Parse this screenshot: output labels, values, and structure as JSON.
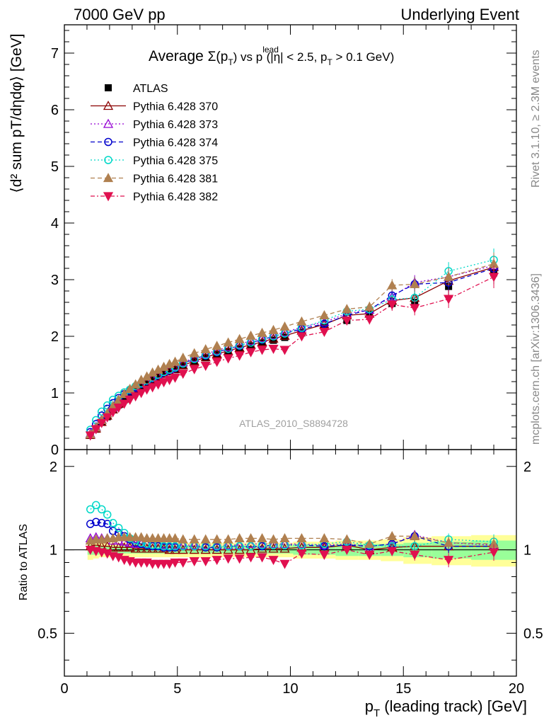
{
  "header": {
    "left": "7000 GeV pp",
    "right": "Underlying Event"
  },
  "side_labels": {
    "rivet": "Rivet 3.1.10, ≥ 2.3M events",
    "mcplots": "mcplots.cern.ch [arXiv:1306.3436]"
  },
  "colors": {
    "ATLAS": "#000000",
    "370": "#8b0000",
    "373": "#9400d3",
    "374": "#0000cc",
    "375": "#00d8c8",
    "381": "#b08050",
    "382": "#e0104f",
    "band_inner": "#99ff99",
    "band_outer": "#ffff99"
  },
  "chart_data": [
    {
      "type": "scatter",
      "title": "Average Σ(pT) vs pT lead (|η| < 2.5, pT > 0.1 GeV)",
      "title_parts": {
        "pre": "Average ",
        "sigma": "Σ(p",
        "sub_T": "T",
        "close": ") vs p",
        "sup_lead": "lead",
        "rest1": " (|η| < 2.5, p",
        "rest2": " > 0.1 GeV)"
      },
      "ylabel": "⟨d² sum pT/dηdφ⟩ [GeV]",
      "watermark": "ATLAS_2010_S8894728",
      "xlim": [
        0,
        20
      ],
      "ylim": [
        0,
        7.5
      ],
      "y_ticks": [
        "0",
        "1",
        "2",
        "3",
        "4",
        "5",
        "6",
        "7"
      ],
      "legend_position": "top-left",
      "series": [
        {
          "name": "ATLAS",
          "marker": "square",
          "x": [
            1.15,
            1.4,
            1.65,
            1.9,
            2.15,
            2.4,
            2.65,
            2.9,
            3.15,
            3.4,
            3.65,
            3.9,
            4.15,
            4.4,
            4.65,
            4.9,
            5.25,
            5.75,
            6.25,
            6.75,
            7.25,
            7.75,
            8.25,
            8.75,
            9.25,
            9.75,
            10.5,
            11.5,
            12.5,
            13.5,
            14.5,
            15.5,
            17.0,
            19.0
          ],
          "y": [
            0.25,
            0.36,
            0.48,
            0.58,
            0.7,
            0.79,
            0.88,
            0.96,
            1.04,
            1.11,
            1.17,
            1.23,
            1.28,
            1.33,
            1.37,
            1.41,
            1.48,
            1.56,
            1.62,
            1.68,
            1.73,
            1.78,
            1.83,
            1.88,
            1.93,
            1.98,
            2.06,
            2.16,
            2.28,
            2.4,
            2.58,
            2.6,
            2.88,
            3.12
          ]
        },
        {
          "name": "Pythia 6.428 370",
          "marker": "triangle-open",
          "dash": "",
          "x": [
            1.15,
            1.4,
            1.65,
            1.9,
            2.15,
            2.4,
            2.65,
            2.9,
            3.15,
            3.4,
            3.65,
            3.9,
            4.15,
            4.4,
            4.65,
            4.9,
            5.25,
            5.75,
            6.25,
            6.75,
            7.25,
            7.75,
            8.25,
            8.75,
            9.25,
            9.75,
            10.5,
            11.5,
            12.5,
            13.5,
            14.5,
            15.5,
            17.0,
            19.0
          ],
          "y": [
            0.26,
            0.37,
            0.49,
            0.6,
            0.71,
            0.81,
            0.9,
            0.98,
            1.05,
            1.12,
            1.18,
            1.24,
            1.29,
            1.34,
            1.38,
            1.42,
            1.49,
            1.56,
            1.63,
            1.69,
            1.74,
            1.8,
            1.85,
            1.9,
            1.96,
            2.01,
            2.1,
            2.21,
            2.37,
            2.4,
            2.63,
            2.68,
            2.98,
            3.22
          ]
        },
        {
          "name": "Pythia 6.428 373",
          "marker": "triangle-open",
          "dash": "2,3",
          "x": [
            1.15,
            1.4,
            1.65,
            1.9,
            2.15,
            2.4,
            2.65,
            2.9,
            3.15,
            3.4,
            3.65,
            3.9,
            4.15,
            4.4,
            4.65,
            4.9,
            5.25,
            5.75,
            6.25,
            6.75,
            7.25,
            7.75,
            8.25,
            8.75,
            9.25,
            9.75,
            10.5,
            11.5,
            12.5,
            13.5,
            14.5,
            15.5,
            17.0,
            19.0
          ],
          "y": [
            0.28,
            0.4,
            0.53,
            0.64,
            0.75,
            0.85,
            0.93,
            1.01,
            1.09,
            1.16,
            1.22,
            1.28,
            1.33,
            1.38,
            1.42,
            1.47,
            1.54,
            1.62,
            1.69,
            1.75,
            1.81,
            1.86,
            1.92,
            1.97,
            2.02,
            2.07,
            2.16,
            2.25,
            2.4,
            2.47,
            2.7,
            2.95,
            3.05,
            3.25
          ]
        },
        {
          "name": "Pythia 6.428 374",
          "marker": "circle-open",
          "dash": "6,4",
          "x": [
            1.15,
            1.4,
            1.65,
            1.9,
            2.15,
            2.4,
            2.65,
            2.9,
            3.15,
            3.4,
            3.65,
            3.9,
            4.15,
            4.4,
            4.65,
            4.9,
            5.25,
            5.75,
            6.25,
            6.75,
            7.25,
            7.75,
            8.25,
            8.75,
            9.25,
            9.75,
            10.5,
            11.5,
            12.5,
            13.5,
            14.5,
            15.5,
            17.0,
            19.0
          ],
          "y": [
            0.31,
            0.45,
            0.6,
            0.72,
            0.82,
            0.91,
            0.98,
            1.04,
            1.1,
            1.16,
            1.21,
            1.26,
            1.31,
            1.36,
            1.4,
            1.44,
            1.52,
            1.6,
            1.66,
            1.72,
            1.78,
            1.83,
            1.89,
            1.94,
            2.0,
            2.05,
            2.13,
            2.22,
            2.37,
            2.47,
            2.72,
            2.92,
            2.95,
            3.2
          ]
        },
        {
          "name": "Pythia 6.428 375",
          "marker": "circle-open",
          "dash": "2,3",
          "x": [
            1.15,
            1.4,
            1.65,
            1.9,
            2.15,
            2.4,
            2.65,
            2.9,
            3.15,
            3.4,
            3.65,
            3.9,
            4.15,
            4.4,
            4.65,
            4.9,
            5.25,
            5.75,
            6.25,
            6.75,
            7.25,
            7.75,
            8.25,
            8.75,
            9.25,
            9.75,
            10.5,
            11.5,
            12.5,
            13.5,
            14.5,
            15.5,
            17.0,
            19.0
          ],
          "y": [
            0.35,
            0.52,
            0.67,
            0.78,
            0.88,
            0.95,
            1.01,
            1.06,
            1.12,
            1.17,
            1.22,
            1.27,
            1.32,
            1.37,
            1.41,
            1.45,
            1.52,
            1.6,
            1.67,
            1.73,
            1.78,
            1.84,
            1.89,
            1.95,
            2.0,
            2.05,
            2.15,
            2.28,
            2.44,
            2.48,
            2.65,
            2.68,
            3.15,
            3.35
          ]
        },
        {
          "name": "Pythia 6.428 381",
          "marker": "triangle-filled",
          "dash": "6,4",
          "x": [
            1.15,
            1.4,
            1.65,
            1.9,
            2.15,
            2.4,
            2.65,
            2.9,
            3.15,
            3.4,
            3.65,
            3.9,
            4.15,
            4.4,
            4.65,
            4.9,
            5.25,
            5.75,
            6.25,
            6.75,
            7.25,
            7.75,
            8.25,
            8.75,
            9.25,
            9.75,
            10.5,
            11.5,
            12.5,
            13.5,
            14.5,
            15.5,
            17.0,
            19.0
          ],
          "y": [
            0.27,
            0.39,
            0.52,
            0.64,
            0.77,
            0.88,
            0.98,
            1.07,
            1.15,
            1.23,
            1.29,
            1.36,
            1.41,
            1.46,
            1.51,
            1.55,
            1.62,
            1.7,
            1.77,
            1.83,
            1.89,
            1.95,
            2.01,
            2.06,
            2.11,
            2.17,
            2.26,
            2.37,
            2.48,
            2.52,
            2.9,
            2.92,
            3.05,
            3.28
          ]
        },
        {
          "name": "Pythia 6.428 382",
          "marker": "triangle-down-filled",
          "dash": "6,3,2,3",
          "x": [
            1.15,
            1.4,
            1.65,
            1.9,
            2.15,
            2.4,
            2.65,
            2.9,
            3.15,
            3.4,
            3.65,
            3.9,
            4.15,
            4.4,
            4.65,
            4.9,
            5.25,
            5.75,
            6.25,
            6.75,
            7.25,
            7.75,
            8.25,
            8.75,
            9.25,
            9.75,
            10.5,
            11.5,
            12.5,
            13.5,
            14.5,
            15.5,
            17.0,
            19.0
          ],
          "y": [
            0.25,
            0.36,
            0.47,
            0.57,
            0.66,
            0.74,
            0.81,
            0.88,
            0.94,
            1.0,
            1.06,
            1.1,
            1.15,
            1.19,
            1.23,
            1.27,
            1.34,
            1.42,
            1.48,
            1.55,
            1.61,
            1.66,
            1.72,
            1.76,
            1.78,
            1.76,
            2.0,
            2.08,
            2.28,
            2.3,
            2.56,
            2.5,
            2.66,
            3.05
          ]
        }
      ]
    },
    {
      "type": "scatter",
      "title": "",
      "xlabel": "pT (leading track) [GeV]",
      "xlabel_parts": {
        "p": "p",
        "sub": "T",
        "rest": " (leading track) [GeV]"
      },
      "ylabel": "Ratio to ATLAS",
      "xlim": [
        0,
        20
      ],
      "ylim": [
        0.35,
        2.3
      ],
      "ylog": true,
      "x_ticks": [
        "0",
        "5",
        "10",
        "15",
        "20"
      ],
      "y_ticks": [
        "0.5",
        "1",
        "2"
      ],
      "uncertainty_band_inner": [
        0.04,
        0.04,
        0.035,
        0.03,
        0.03,
        0.03,
        0.03,
        0.03,
        0.03,
        0.03,
        0.03,
        0.03,
        0.03,
        0.03,
        0.03,
        0.03,
        0.03,
        0.03,
        0.03,
        0.03,
        0.03,
        0.03,
        0.03,
        0.03,
        0.03,
        0.03,
        0.04,
        0.04,
        0.05,
        0.05,
        0.05,
        0.06,
        0.07,
        0.08
      ],
      "uncertainty_band_outer": [
        0.08,
        0.07,
        0.06,
        0.06,
        0.06,
        0.06,
        0.06,
        0.06,
        0.06,
        0.06,
        0.06,
        0.06,
        0.06,
        0.06,
        0.06,
        0.06,
        0.06,
        0.06,
        0.06,
        0.06,
        0.06,
        0.06,
        0.06,
        0.06,
        0.06,
        0.06,
        0.07,
        0.07,
        0.08,
        0.08,
        0.09,
        0.11,
        0.12,
        0.13
      ],
      "series": [
        {
          "name": "Pythia 6.428 370",
          "y": [
            1.03,
            1.04,
            1.03,
            1.03,
            1.02,
            1.02,
            1.02,
            1.02,
            1.01,
            1.01,
            1.01,
            1.01,
            1.01,
            1.01,
            1.0,
            1.0,
            1.0,
            1.0,
            1.0,
            1.0,
            1.0,
            1.0,
            1.0,
            1.01,
            1.01,
            1.01,
            1.02,
            1.02,
            1.04,
            1.0,
            1.02,
            1.03,
            1.03,
            1.03
          ]
        },
        {
          "name": "Pythia 6.428 373",
          "y": [
            1.1,
            1.11,
            1.1,
            1.1,
            1.08,
            1.08,
            1.07,
            1.06,
            1.05,
            1.05,
            1.05,
            1.04,
            1.04,
            1.04,
            1.03,
            1.04,
            1.04,
            1.04,
            1.04,
            1.04,
            1.04,
            1.04,
            1.05,
            1.05,
            1.05,
            1.05,
            1.05,
            1.04,
            1.05,
            1.03,
            1.05,
            1.13,
            1.06,
            1.04
          ]
        },
        {
          "name": "Pythia 6.428 374",
          "y": [
            1.24,
            1.26,
            1.25,
            1.24,
            1.17,
            1.15,
            1.12,
            1.09,
            1.06,
            1.05,
            1.04,
            1.03,
            1.03,
            1.02,
            1.02,
            1.02,
            1.03,
            1.03,
            1.02,
            1.02,
            1.03,
            1.03,
            1.03,
            1.03,
            1.04,
            1.04,
            1.04,
            1.03,
            1.04,
            1.03,
            1.05,
            1.12,
            1.03,
            1.03
          ]
        },
        {
          "name": "Pythia 6.428 375",
          "y": [
            1.4,
            1.45,
            1.4,
            1.34,
            1.25,
            1.2,
            1.15,
            1.1,
            1.08,
            1.06,
            1.05,
            1.04,
            1.04,
            1.03,
            1.03,
            1.03,
            1.03,
            1.03,
            1.03,
            1.03,
            1.03,
            1.03,
            1.03,
            1.04,
            1.04,
            1.04,
            1.04,
            1.05,
            1.07,
            1.04,
            1.03,
            1.03,
            1.09,
            1.07
          ]
        },
        {
          "name": "Pythia 6.428 381",
          "y": [
            1.08,
            1.09,
            1.09,
            1.1,
            1.1,
            1.11,
            1.11,
            1.11,
            1.11,
            1.11,
            1.1,
            1.1,
            1.1,
            1.1,
            1.1,
            1.1,
            1.09,
            1.09,
            1.09,
            1.09,
            1.09,
            1.1,
            1.1,
            1.1,
            1.09,
            1.1,
            1.1,
            1.1,
            1.09,
            1.05,
            1.12,
            1.12,
            1.06,
            1.05
          ]
        },
        {
          "name": "Pythia 6.428 382",
          "y": [
            1.0,
            0.99,
            0.98,
            0.97,
            0.95,
            0.94,
            0.92,
            0.91,
            0.9,
            0.9,
            0.9,
            0.89,
            0.89,
            0.89,
            0.89,
            0.9,
            0.9,
            0.91,
            0.91,
            0.92,
            0.93,
            0.93,
            0.94,
            0.94,
            0.92,
            0.89,
            0.97,
            0.96,
            1.0,
            0.96,
            0.99,
            0.96,
            0.92,
            0.98
          ]
        }
      ]
    }
  ],
  "legend": {
    "entries": [
      "ATLAS",
      "Pythia 6.428 370",
      "Pythia 6.428 373",
      "Pythia 6.428 374",
      "Pythia 6.428 375",
      "Pythia 6.428 381",
      "Pythia 6.428 382"
    ],
    "keys": [
      "ATLAS",
      "370",
      "373",
      "374",
      "375",
      "381",
      "382"
    ]
  }
}
